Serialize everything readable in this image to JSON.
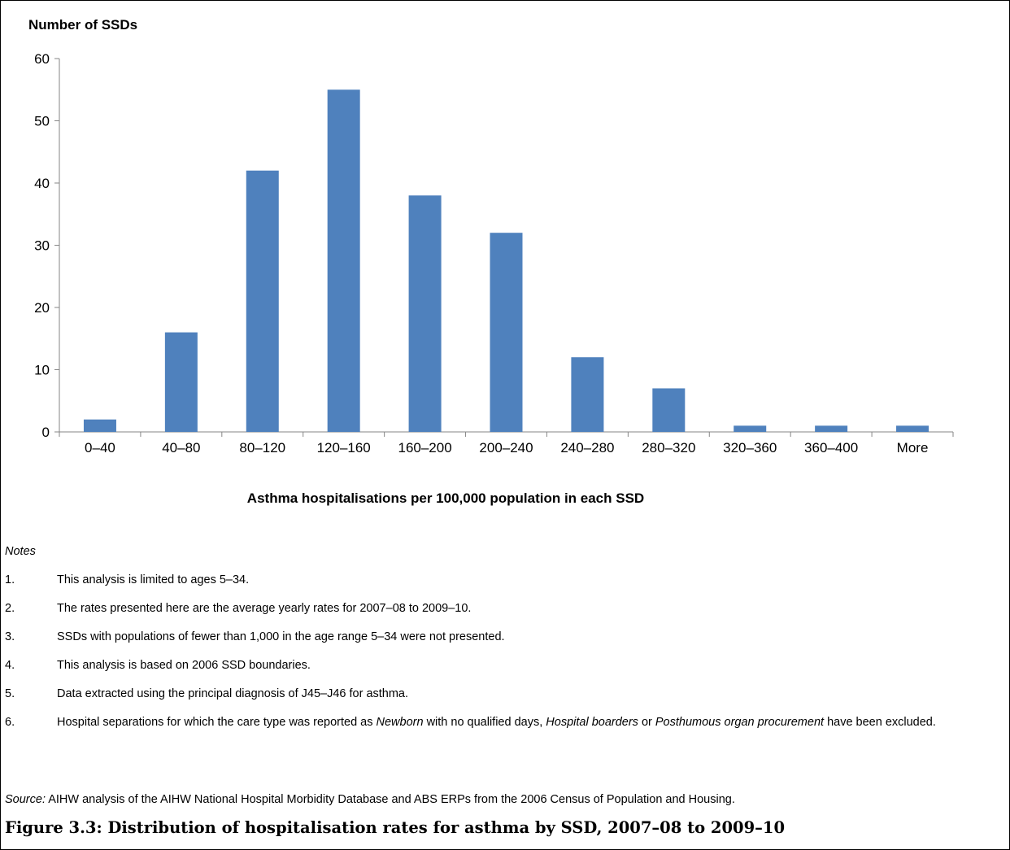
{
  "chart_data": {
    "type": "bar",
    "categories": [
      "0–40",
      "40–80",
      "80–120",
      "120–160",
      "160–200",
      "200–240",
      "240–280",
      "280–320",
      "320–360",
      "360–400",
      "More"
    ],
    "values": [
      2,
      16,
      42,
      55,
      38,
      32,
      12,
      7,
      1,
      1,
      1
    ],
    "ylabel": "Number of SSDs",
    "xlabel": "Asthma hospitalisations per 100,000 population in each SSD",
    "ylim": [
      0,
      60
    ],
    "yticks": [
      0,
      10,
      20,
      30,
      40,
      50,
      60
    ],
    "grid": false,
    "bar_color": "#4F81BD"
  },
  "notes": {
    "title": "Notes",
    "items": [
      {
        "num": "1.",
        "text": "This analysis is limited to ages 5–34."
      },
      {
        "num": "2.",
        "text": "The rates presented here are the average yearly rates for 2007–08 to 2009–10."
      },
      {
        "num": "3.",
        "text": "SSDs with populations of fewer than 1,000 in the age range 5–34 were not presented."
      },
      {
        "num": "4.",
        "text": "This analysis is based on 2006 SSD boundaries."
      },
      {
        "num": "5.",
        "text": "Data extracted using the principal diagnosis of J45–J46 for asthma."
      },
      {
        "num": "6.",
        "text_parts": [
          "Hospital separations for which the care type was reported as ",
          "Newborn",
          " with no qualified days, ",
          "Hospital boarders",
          " or ",
          "Posthumous organ procurement",
          " have been excluded."
        ]
      }
    ]
  },
  "source": {
    "label": "Source:",
    "text": " AIHW analysis of the AIHW National Hospital Morbidity Database and ABS ERPs from the 2006 Census of Population and Housing."
  },
  "caption": "Figure 3.3: Distribution of hospitalisation rates for asthma by SSD, 2007–08 to 2009–10"
}
